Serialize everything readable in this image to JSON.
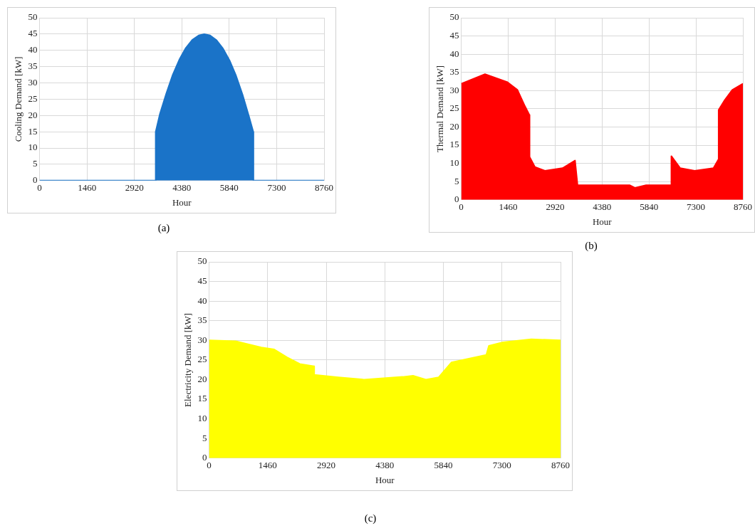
{
  "chart_data": [
    {
      "type": "area",
      "xlabel": "Hour",
      "ylabel": "Cooling Demand [kW]",
      "annotations": [
        "(a)"
      ],
      "grid": true,
      "legend": false,
      "xlim": [
        0,
        8760
      ],
      "xticks": [
        0,
        1460,
        2920,
        4380,
        5840,
        7300,
        8760
      ],
      "ylim": [
        0,
        50
      ],
      "yticks": [
        0,
        5,
        10,
        15,
        20,
        25,
        30,
        35,
        40,
        45,
        50
      ],
      "series": [
        {
          "color": "#1a73c8",
          "x": [
            0,
            3573,
            3575,
            3700,
            3900,
            4100,
            4300,
            4500,
            4700,
            4900,
            5070,
            5250,
            5450,
            5650,
            5850,
            6050,
            6250,
            6450,
            6580,
            6585,
            8760
          ],
          "values": [
            0,
            0,
            15,
            20.3,
            26.7,
            32.5,
            37.1,
            40.7,
            43.2,
            44.6,
            45,
            44.6,
            43.1,
            40.5,
            36.9,
            32.2,
            26.4,
            19.6,
            15,
            0,
            0
          ]
        }
      ]
    },
    {
      "type": "area",
      "xlabel": "Hour",
      "ylabel": "Thermal Demand [kW]",
      "annotations": [
        "(b)"
      ],
      "grid": true,
      "legend": false,
      "xlim": [
        0,
        8760
      ],
      "xticks": [
        0,
        1460,
        2920,
        4380,
        5840,
        7300,
        8760
      ],
      "ylim": [
        0,
        50
      ],
      "yticks": [
        0,
        5,
        10,
        15,
        20,
        25,
        30,
        35,
        40,
        45,
        50
      ],
      "series": [
        {
          "color": "#ff0000",
          "x": [
            0,
            738,
            1437,
            1748,
            1981,
            2121,
            2125,
            2292,
            2603,
            3150,
            3539,
            3617,
            5245,
            5400,
            5750,
            6530,
            6535,
            6810,
            7260,
            7845,
            8000,
            8005,
            8196,
            8430,
            8760
          ],
          "values": [
            31.9,
            34.5,
            32.3,
            30.2,
            25.7,
            23.3,
            11.8,
            9,
            8,
            8.7,
            10.8,
            4,
            4,
            3.3,
            4,
            4,
            12,
            8.7,
            8,
            8.7,
            11.1,
            24.7,
            27.4,
            30.2,
            31.9
          ]
        }
      ]
    },
    {
      "type": "area",
      "xlabel": "Hour",
      "ylabel": "Electricity Demand [kW]",
      "annotations": [
        "(c)"
      ],
      "grid": true,
      "legend": false,
      "xlim": [
        0,
        8760
      ],
      "xticks": [
        0,
        1460,
        2920,
        4380,
        5840,
        7300,
        8760
      ],
      "ylim": [
        0,
        50
      ],
      "yticks": [
        0,
        5,
        10,
        15,
        20,
        25,
        30,
        35,
        40,
        45,
        50
      ],
      "series": [
        {
          "color": "#ffff00",
          "x": [
            0,
            660,
            1300,
            1623,
            1942,
            2261,
            2617,
            2620,
            3224,
            3865,
            4827,
            5083,
            5403,
            5723,
            6043,
            6909,
            6973,
            7326,
            8032,
            8760
          ],
          "values": [
            30,
            29.8,
            28.2,
            27.7,
            25.7,
            24,
            23.4,
            21.2,
            20.6,
            20,
            20.7,
            21,
            20,
            20.6,
            24.4,
            26.3,
            28.6,
            29.5,
            30.3,
            30
          ]
        }
      ]
    }
  ]
}
